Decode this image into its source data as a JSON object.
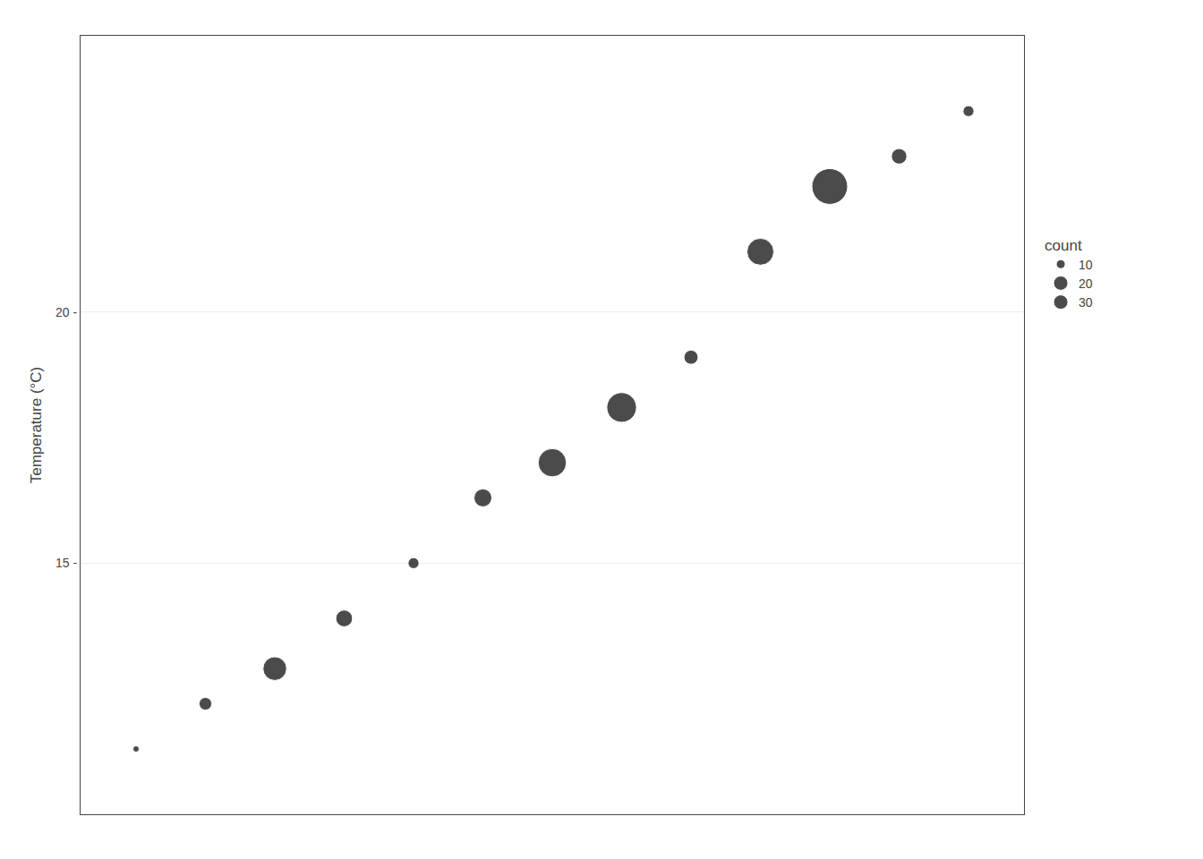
{
  "chart_data": {
    "type": "scatter",
    "x": [
      1,
      2,
      3,
      4,
      5,
      6,
      7,
      8,
      9,
      10,
      11,
      12,
      13
    ],
    "values": [
      11.3,
      12.2,
      12.9,
      13.9,
      15.0,
      16.3,
      17.0,
      18.1,
      19.1,
      21.2,
      22.5,
      23.1,
      24.0
    ],
    "counts": [
      1,
      4,
      14,
      7,
      3,
      8,
      20,
      22,
      5,
      18,
      32,
      6,
      3
    ],
    "color": "#000000",
    "ylabel": "Temperature (°C)",
    "xlim": [
      0.2,
      13.8
    ],
    "ylim": [
      10.0,
      25.5
    ],
    "yticks": [
      {
        "value": 15,
        "label": "15 -"
      },
      {
        "value": 20,
        "label": "20 -"
      }
    ],
    "grid": true,
    "tick_labels": "y",
    "legend_title": "count",
    "size_legend": [
      10,
      20,
      30
    ],
    "legend": "right"
  }
}
